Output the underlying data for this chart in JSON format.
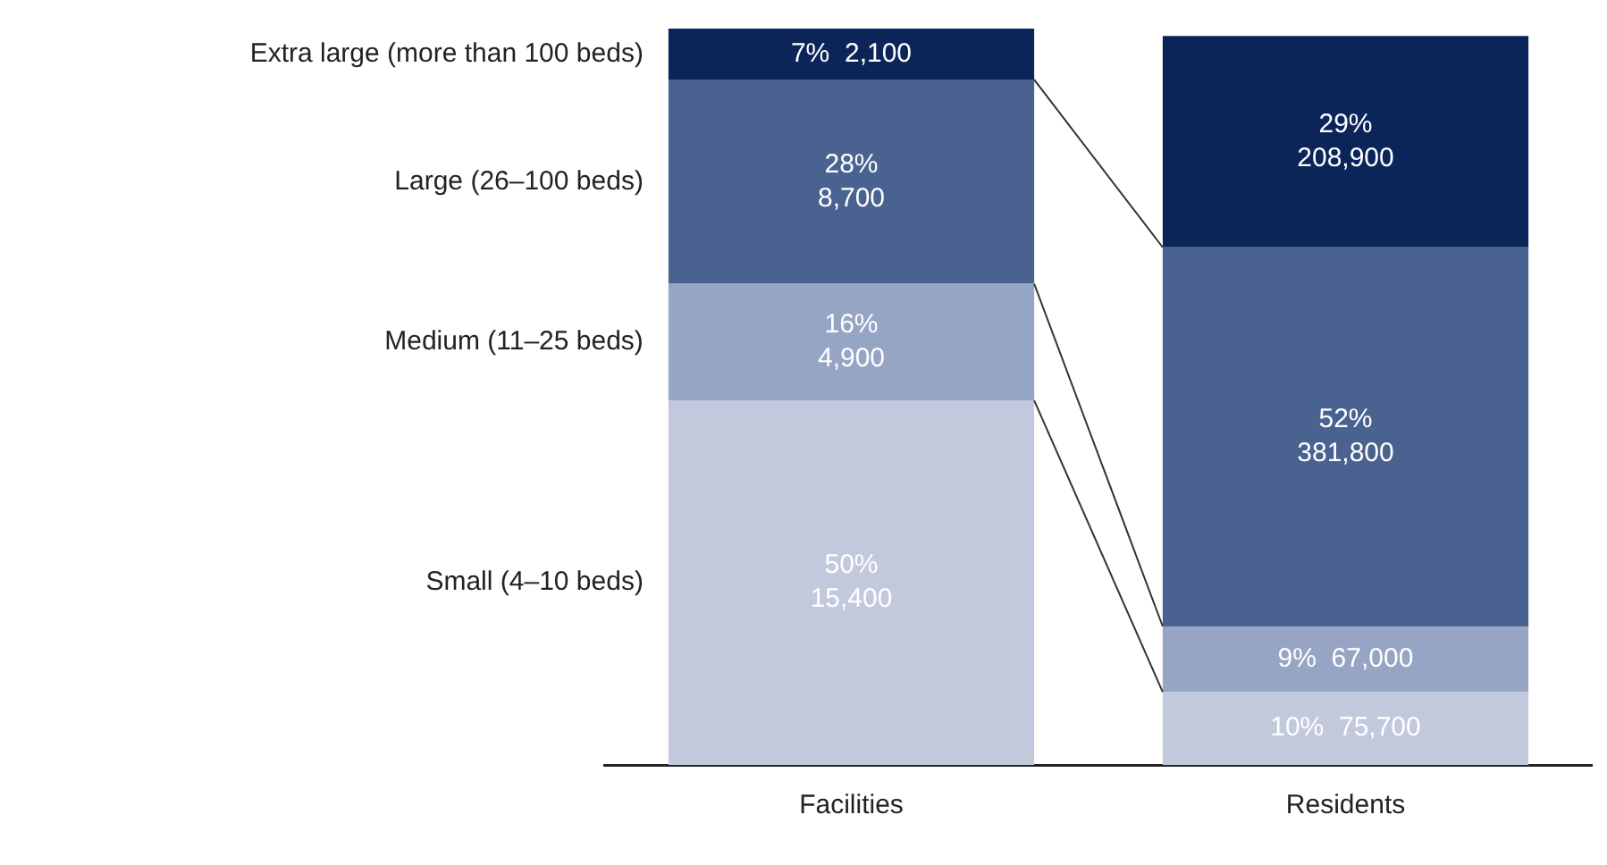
{
  "chart_data": {
    "type": "bar",
    "stacked": true,
    "categories": [
      "Facilities",
      "Residents"
    ],
    "series": [
      {
        "name": "Small (4–10 beds)",
        "color": "#c3c9dd",
        "values": [
          50,
          10
        ],
        "value_labels": [
          "50%\n15,400",
          "10%  75,700"
        ]
      },
      {
        "name": "Medium (11–25 beds)",
        "color": "#97a5c5",
        "values": [
          16,
          9
        ],
        "value_labels": [
          "16%\n4,900",
          "9%  67,000"
        ]
      },
      {
        "name": "Large (26–100 beds)",
        "color": "#4a6290",
        "values": [
          28,
          52
        ],
        "value_labels": [
          "28%\n8,700",
          "52%\n381,800"
        ]
      },
      {
        "name": "Extra large (more than 100 beds)",
        "color": "#0b2559",
        "values": [
          7,
          29
        ],
        "value_labels": [
          "7%  2,100",
          "29%\n208,900"
        ]
      }
    ],
    "legend": false,
    "grid": false
  }
}
